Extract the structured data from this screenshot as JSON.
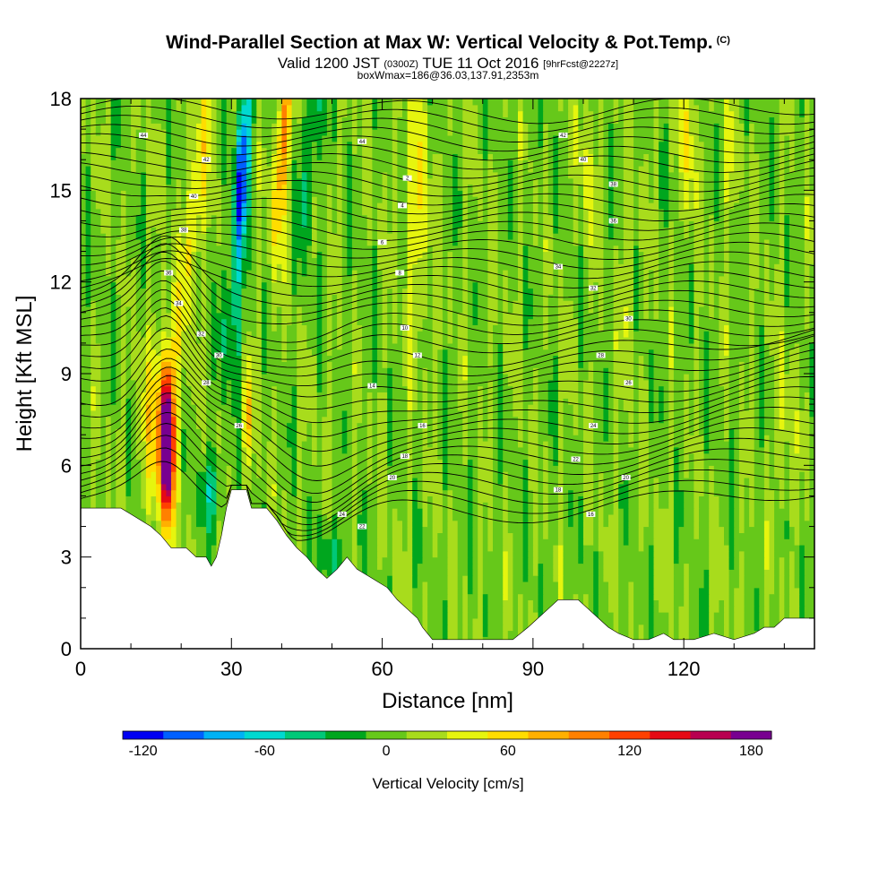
{
  "header": {
    "title": "Wind-Parallel Section at Max W: Vertical Velocity & Pot.Temp.",
    "copyright": "(C)",
    "valid_prefix": "Valid 1200 JST",
    "valid_utc": "(0300Z)",
    "valid_date": "TUE 11 Oct 2016",
    "forecast": "[9hrFcst@2227z]",
    "box_info": "boxWmax=186@36.03,137.91,2353m"
  },
  "chart_data": {
    "type": "heatmap",
    "xlabel": "Distance [nm]",
    "ylabel": "Height [Kft MSL]",
    "xlim": [
      0,
      146
    ],
    "ylim": [
      0,
      18
    ],
    "x_ticks": [
      0,
      30,
      60,
      90,
      120
    ],
    "y_ticks": [
      0,
      3,
      6,
      9,
      12,
      15,
      18
    ],
    "terrain": {
      "x": [
        0,
        8,
        10,
        12,
        14,
        16,
        17,
        18,
        21,
        23,
        25,
        26,
        27,
        28,
        29,
        30,
        31,
        33,
        34,
        35,
        37,
        39,
        41,
        43,
        45,
        47,
        49,
        51,
        53,
        55,
        58,
        61,
        63,
        65,
        67,
        68,
        70,
        73,
        76,
        80,
        84,
        86,
        89,
        91,
        93,
        95,
        97,
        99,
        101,
        103,
        105,
        107,
        110,
        113,
        116,
        118,
        122,
        126,
        130,
        134,
        136,
        138,
        140,
        143,
        146
      ],
      "height_kft": [
        4.6,
        4.6,
        4.4,
        4.2,
        4.0,
        3.7,
        3.5,
        3.3,
        3.3,
        3.0,
        3.0,
        2.7,
        3.0,
        3.7,
        4.6,
        5.2,
        5.2,
        5.2,
        4.6,
        4.6,
        4.6,
        4.2,
        3.7,
        3.3,
        3.0,
        2.6,
        2.3,
        2.6,
        3.0,
        2.6,
        2.3,
        2.0,
        1.6,
        1.3,
        1.0,
        0.7,
        0.3,
        0.3,
        0.3,
        0.3,
        0.3,
        0.3,
        0.7,
        1.0,
        1.3,
        1.6,
        1.6,
        1.6,
        1.3,
        1.0,
        0.7,
        0.5,
        0.3,
        0.3,
        0.5,
        0.3,
        0.3,
        0.5,
        0.3,
        0.5,
        0.7,
        0.7,
        1.0,
        1.0,
        1.0
      ]
    },
    "vertical_velocity_cm_s": {
      "background": 5,
      "features": [
        {
          "x": 17.2,
          "y": 7.0,
          "peak": 186,
          "shape": "updraft core"
        },
        {
          "x": 20.3,
          "y": 15.0,
          "peak": 70,
          "shape": "tilted updraft"
        },
        {
          "x": 33.2,
          "y": 7.6,
          "peak": 80,
          "shape": "narrow updraft"
        },
        {
          "x": 33.2,
          "y": 15.0,
          "peak": -100,
          "shape": "downdraft"
        },
        {
          "x": 40.8,
          "y": 15.5,
          "peak": 90,
          "shape": "upper updraft"
        },
        {
          "x": 47.0,
          "y": 16.5,
          "peak": -40,
          "shape": "downdraft"
        },
        {
          "x": 50.0,
          "y": 3.5,
          "peak": -30,
          "shape": "downslope"
        },
        {
          "x": 67.0,
          "y": 14.0,
          "peak": 40,
          "shape": "band"
        },
        {
          "x": 121.0,
          "y": 16.5,
          "peak": 50,
          "shape": "upper band"
        },
        {
          "x": 129.0,
          "y": 16.0,
          "peak": 35,
          "shape": "band"
        },
        {
          "x": 101.0,
          "y": 15.0,
          "peak": 35,
          "shape": "band"
        }
      ]
    },
    "potential_temperature": {
      "label_values": [
        "44",
        "42",
        "40",
        "38",
        "36",
        "34",
        "32",
        "30",
        "28",
        "26",
        "24",
        "22",
        "20",
        "18",
        "16",
        "14",
        "12",
        "10",
        "8",
        "6",
        "4",
        "2"
      ]
    },
    "colorbar": {
      "label": "Vertical Velocity [cm/s]",
      "tick_labels": [
        "-120",
        "-60",
        "0",
        "60",
        "120",
        "180"
      ],
      "tick_values": [
        -120,
        -60,
        0,
        60,
        120,
        180
      ],
      "bins": [
        -130,
        -110,
        -90,
        -70,
        -50,
        -30,
        -10,
        10,
        30,
        50,
        70,
        90,
        110,
        130,
        150,
        170,
        190
      ],
      "colors": [
        "#0000f2",
        "#0060ff",
        "#00b2f5",
        "#00d9d0",
        "#00c878",
        "#00a61e",
        "#66c81a",
        "#a8dc1c",
        "#e6f50e",
        "#ffdd00",
        "#ffb000",
        "#ff8000",
        "#ff4000",
        "#e60a14",
        "#b80050",
        "#780090"
      ]
    }
  }
}
